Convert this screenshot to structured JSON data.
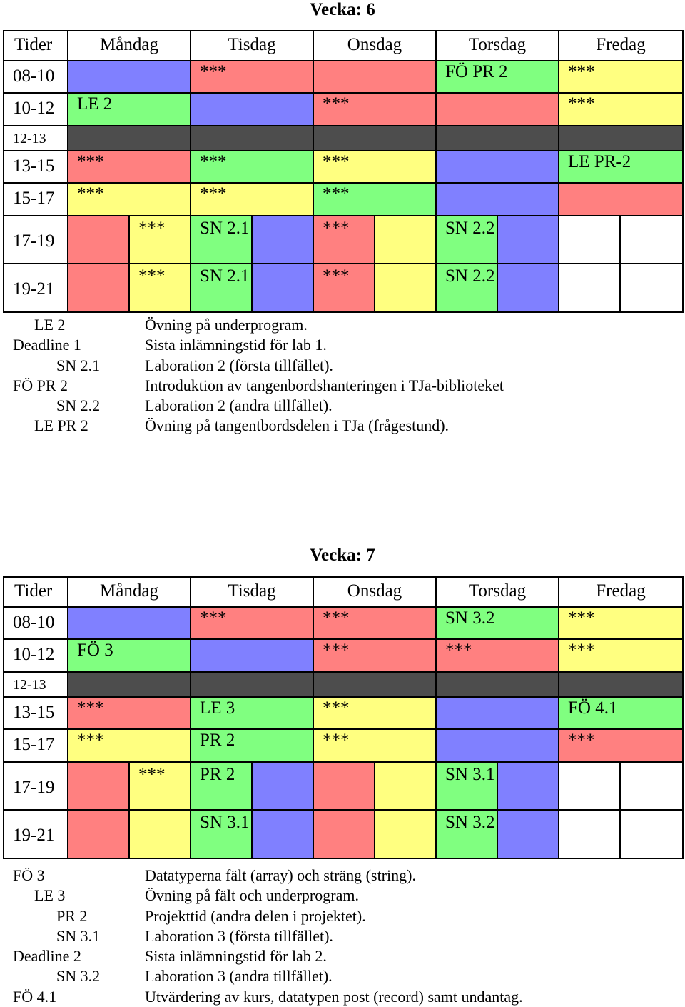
{
  "colors": {
    "red": "#ff8080",
    "green": "#80ff80",
    "yellow": "#ffff80",
    "blue": "#8080ff",
    "break": "#4d4d4d"
  },
  "headers": [
    "Tider",
    "Måndag",
    "Tisdag",
    "Onsdag",
    "Torsdag",
    "Fredag"
  ],
  "weeks": [
    {
      "title": "Vecka: 6",
      "times": [
        "08-10",
        "10-12",
        "12-13",
        "13-15",
        "15-17",
        "17-19",
        "19-21"
      ],
      "slots": {
        "r0": [
          "",
          "***",
          "",
          "FÖ PR 2",
          "***"
        ],
        "r1": [
          "LE 2",
          "",
          "***",
          "",
          "***"
        ],
        "r3": [
          "***",
          "***",
          "***",
          "",
          "LE PR-2"
        ],
        "r4": [
          "***",
          "***",
          "***",
          "",
          ""
        ],
        "r5": [
          "",
          "***",
          "SN 2.1",
          "",
          "***",
          "",
          "SN 2.2",
          "",
          "",
          ""
        ],
        "r6": [
          "",
          "***",
          "SN 2.1",
          "",
          "***",
          "",
          "SN 2.2",
          "",
          "",
          ""
        ]
      },
      "legend": [
        {
          "code": "LE 2",
          "desc": "Övning på underprogram."
        },
        {
          "code": "Deadline 1",
          "desc": "Sista inlämningstid för lab 1."
        },
        {
          "code": "SN 2.1",
          "desc": "Laboration 2 (första tillfället)."
        },
        {
          "code": "FÖ PR 2",
          "desc": "Introduktion av tangenbordshanteringen i TJa-biblioteket"
        },
        {
          "code": "SN 2.2",
          "desc": "Laboration 2 (andra tillfället)."
        },
        {
          "code": "LE PR 2",
          "desc": "Övning på tangentbordsdelen i TJa (frågestund)."
        }
      ]
    },
    {
      "title": "Vecka: 7",
      "times": [
        "08-10",
        "10-12",
        "12-13",
        "13-15",
        "15-17",
        "17-19",
        "19-21"
      ],
      "slots": {
        "r0": [
          "",
          "***",
          "***",
          "SN 3.2",
          "***"
        ],
        "r1": [
          "FÖ 3",
          "",
          "***",
          "***",
          "***"
        ],
        "r3": [
          "***",
          "LE 3",
          "***",
          "",
          "FÖ 4.1"
        ],
        "r4": [
          "***",
          "PR 2",
          "***",
          "",
          "***"
        ],
        "r5": [
          "",
          "***",
          "PR 2",
          "",
          "",
          "",
          "SN 3.1",
          "",
          "",
          ""
        ],
        "r6": [
          "",
          "",
          "SN 3.1",
          "",
          "",
          "",
          "SN 3.2",
          "",
          "",
          ""
        ]
      },
      "legend": [
        {
          "code": "FÖ 3",
          "desc": "Datatyperna fält (array) och sträng (string)."
        },
        {
          "code": "LE 3",
          "desc": "Övning på fält och underprogram."
        },
        {
          "code": "PR 2",
          "desc": "Projekttid (andra delen i projektet)."
        },
        {
          "code": "SN 3.1",
          "desc": "Laboration 3 (första tillfället)."
        },
        {
          "code": "Deadline 2",
          "desc": "Sista inlämningstid för lab 2."
        },
        {
          "code": "SN 3.2",
          "desc": "Laboration 3 (andra tillfället)."
        },
        {
          "code": "FÖ 4.1",
          "desc": "Utvärdering av kurs, datatypen post (record) samt undantag."
        }
      ]
    }
  ]
}
